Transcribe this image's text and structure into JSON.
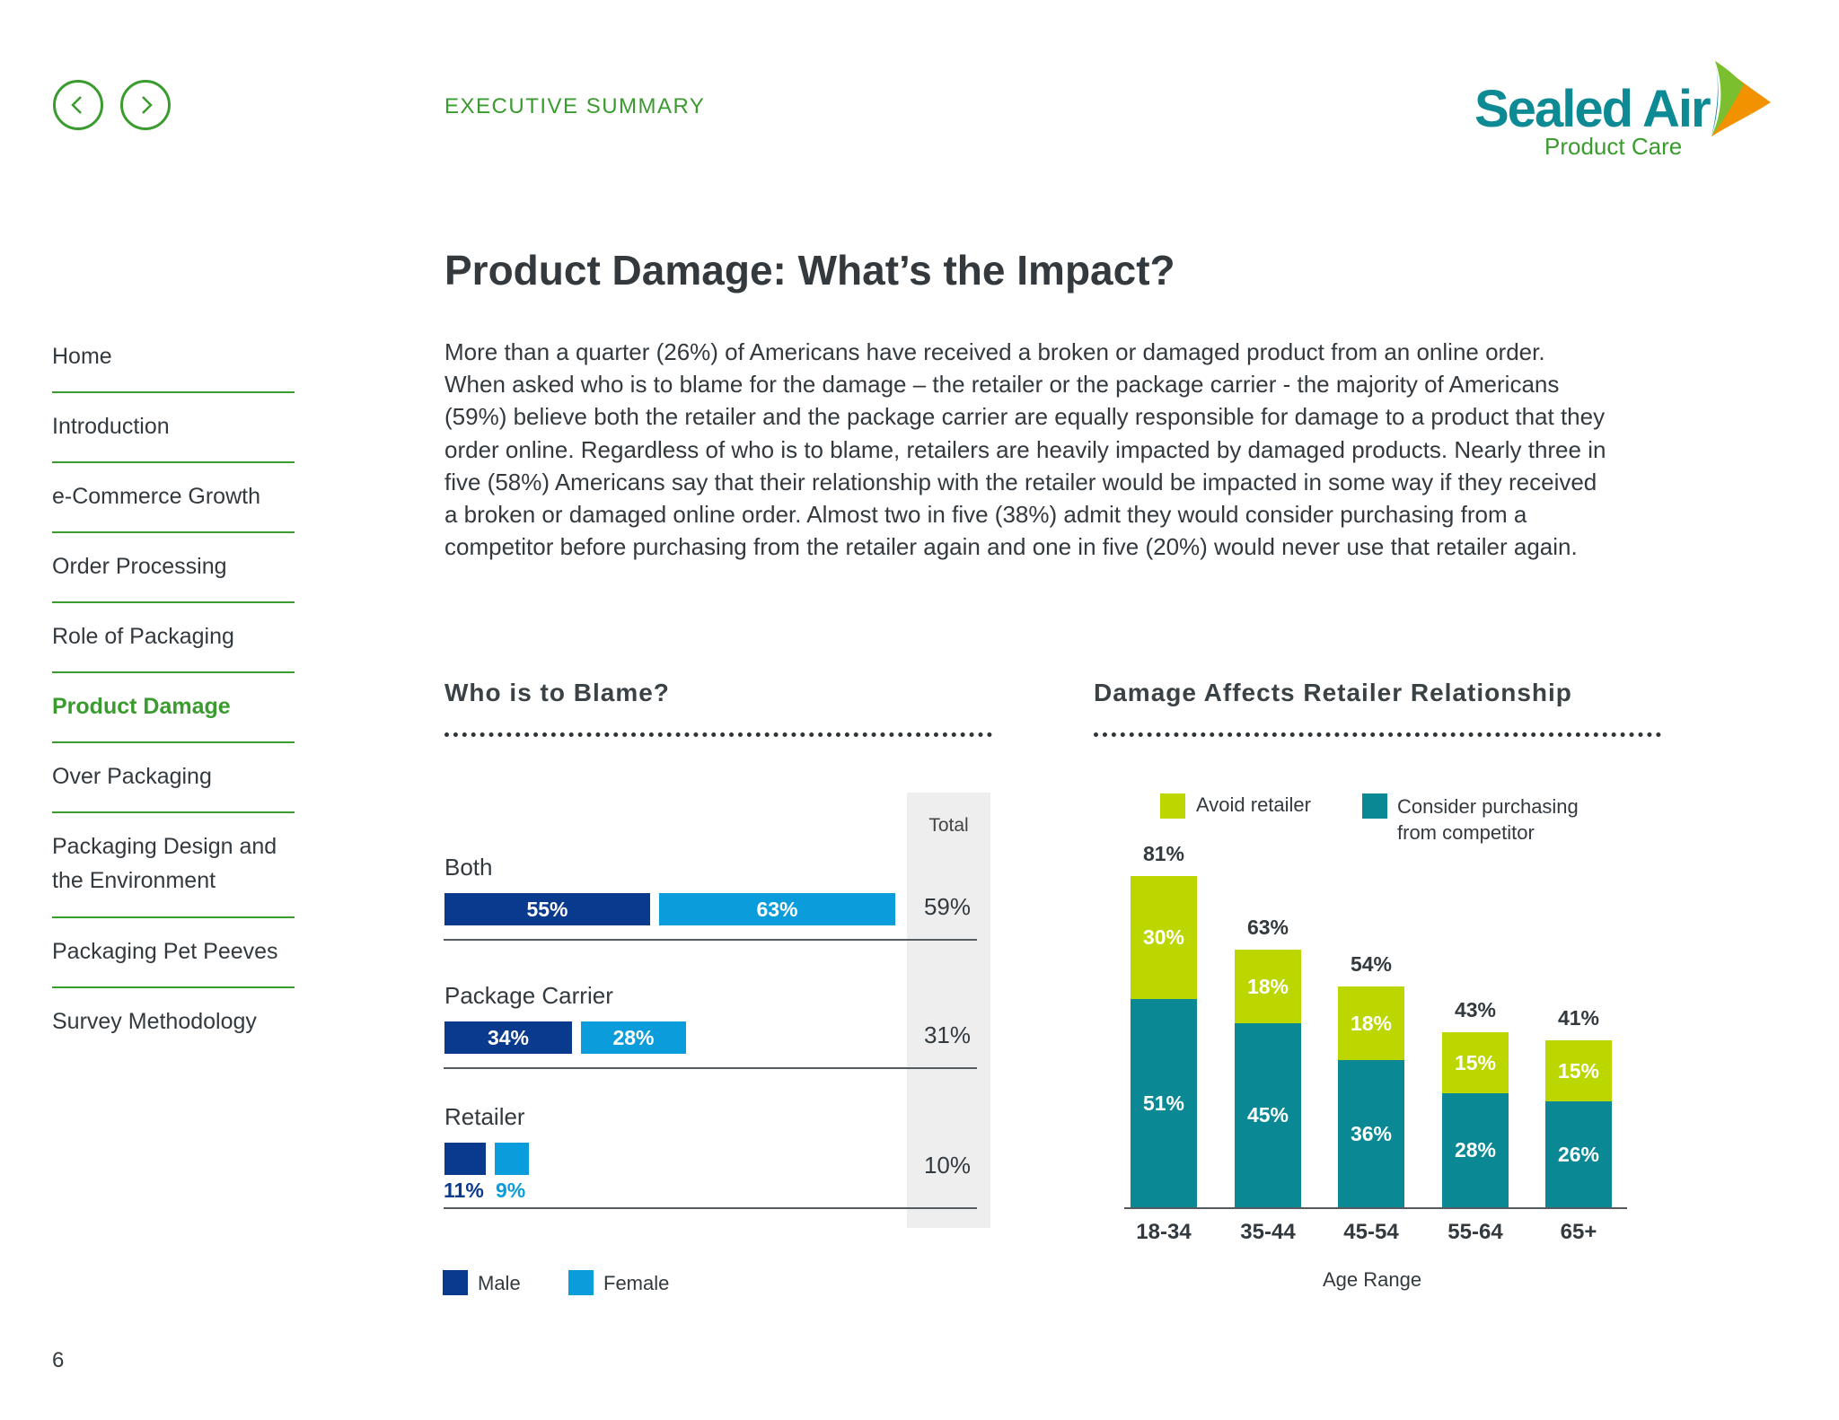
{
  "header": {
    "section_label": "EXECUTIVE SUMMARY",
    "logo": {
      "name": "Sealed Air",
      "subtitle": "Product Care"
    }
  },
  "nav": {
    "prev_icon": "chevron-left-icon",
    "next_icon": "chevron-right-icon"
  },
  "page_title": "Product Damage: What’s the Impact?",
  "intro": "More than a quarter (26%) of Americans have received a broken or damaged product from an online order. When asked who is to blame for the damage – the retailer or the package carrier - the majority of Americans (59%) believe both the retailer and the package carrier are equally responsible for damage to a product that they order online. Regardless of who is to blame, retailers are heavily impacted by damaged products. Nearly three in five (58%) Americans say that their relationship with the retailer would be impacted in some way if they received a broken or damaged online order. Almost two in five (38%) admit they would consider purchasing from a competitor before purchasing from the retailer again and one in five (20%) would never use that retailer again.",
  "sidebar": {
    "items": [
      {
        "label": "Home"
      },
      {
        "label": "Introduction"
      },
      {
        "label": "e-Commerce Growth"
      },
      {
        "label": "Order Processing"
      },
      {
        "label": "Role of Packaging"
      },
      {
        "label": "Product Damage",
        "active": true
      },
      {
        "label": "Over Packaging"
      },
      {
        "label": "Packaging Design and the Environment"
      },
      {
        "label": "Packaging Pet Peeves"
      },
      {
        "label": "Survey Methodology"
      }
    ]
  },
  "page_number": "6",
  "colors": {
    "accent_green": "#3a9b2e",
    "teal": "#0a8995",
    "lime": "#bcd600",
    "male": "#0a3a8e",
    "female": "#0b9ddb"
  },
  "chart_data": [
    {
      "type": "bar",
      "orientation": "horizontal",
      "title": "Who is to Blame?",
      "total_header": "Total",
      "categories": [
        "Both",
        "Package Carrier",
        "Retailer"
      ],
      "series": [
        {
          "name": "Male",
          "values": [
            55,
            34,
            11
          ],
          "labels": [
            "55%",
            "34%",
            "11%"
          ]
        },
        {
          "name": "Female",
          "values": [
            63,
            28,
            9
          ],
          "labels": [
            "63%",
            "28%",
            "9%"
          ]
        }
      ],
      "totals": [
        "59%",
        "31%",
        "10%"
      ],
      "legend": "bottom-left"
    },
    {
      "type": "bar",
      "stacked": true,
      "title": "Damage Affects Retailer Relationship",
      "xlabel": "Age Range",
      "categories": [
        "18-34",
        "35-44",
        "45-54",
        "55-64",
        "65+"
      ],
      "series": [
        {
          "name": "Consider purchasing from competitor",
          "values": [
            51,
            45,
            36,
            28,
            26
          ],
          "labels": [
            "51%",
            "45%",
            "36%",
            "28%",
            "26%"
          ]
        },
        {
          "name": "Avoid retailer",
          "values": [
            30,
            18,
            18,
            15,
            15
          ],
          "labels": [
            "30%",
            "18%",
            "18%",
            "15%",
            "15%"
          ]
        }
      ],
      "totals": [
        "81%",
        "63%",
        "54%",
        "43%",
        "41%"
      ],
      "legend": "top"
    }
  ]
}
